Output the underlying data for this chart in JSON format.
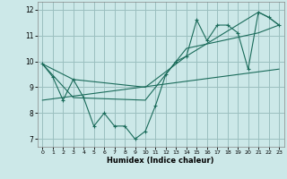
{
  "xlabel": "Humidex (Indice chaleur)",
  "background_color": "#cce8e8",
  "grid_color": "#9bbfbf",
  "line_color": "#1a6b5a",
  "xlim": [
    -0.5,
    23.5
  ],
  "ylim": [
    6.7,
    12.3
  ],
  "xticks": [
    0,
    1,
    2,
    3,
    4,
    5,
    6,
    7,
    8,
    9,
    10,
    11,
    12,
    13,
    14,
    15,
    16,
    17,
    18,
    19,
    20,
    21,
    22,
    23
  ],
  "yticks": [
    7,
    8,
    9,
    10,
    11,
    12
  ],
  "series1_x": [
    0,
    1,
    2,
    3,
    4,
    5,
    6,
    7,
    8,
    9,
    10,
    11,
    12,
    13,
    14,
    15,
    16,
    17,
    18,
    19,
    20,
    21,
    22,
    23
  ],
  "series1_y": [
    9.9,
    9.4,
    8.5,
    9.3,
    8.6,
    7.5,
    8.0,
    7.5,
    7.5,
    7.0,
    7.3,
    8.3,
    9.5,
    10.0,
    10.2,
    11.6,
    10.8,
    11.4,
    11.4,
    11.1,
    9.7,
    11.9,
    11.7,
    11.4
  ],
  "series2_x": [
    0,
    3,
    10,
    14,
    21,
    22,
    23
  ],
  "series2_y": [
    9.9,
    9.3,
    9.0,
    10.2,
    11.9,
    11.7,
    11.4
  ],
  "series3_x": [
    0,
    3,
    10,
    14,
    21,
    23
  ],
  "series3_y": [
    9.9,
    8.6,
    8.5,
    10.5,
    11.1,
    11.4
  ],
  "series4_x": [
    0,
    23
  ],
  "series4_y": [
    8.5,
    9.7
  ]
}
